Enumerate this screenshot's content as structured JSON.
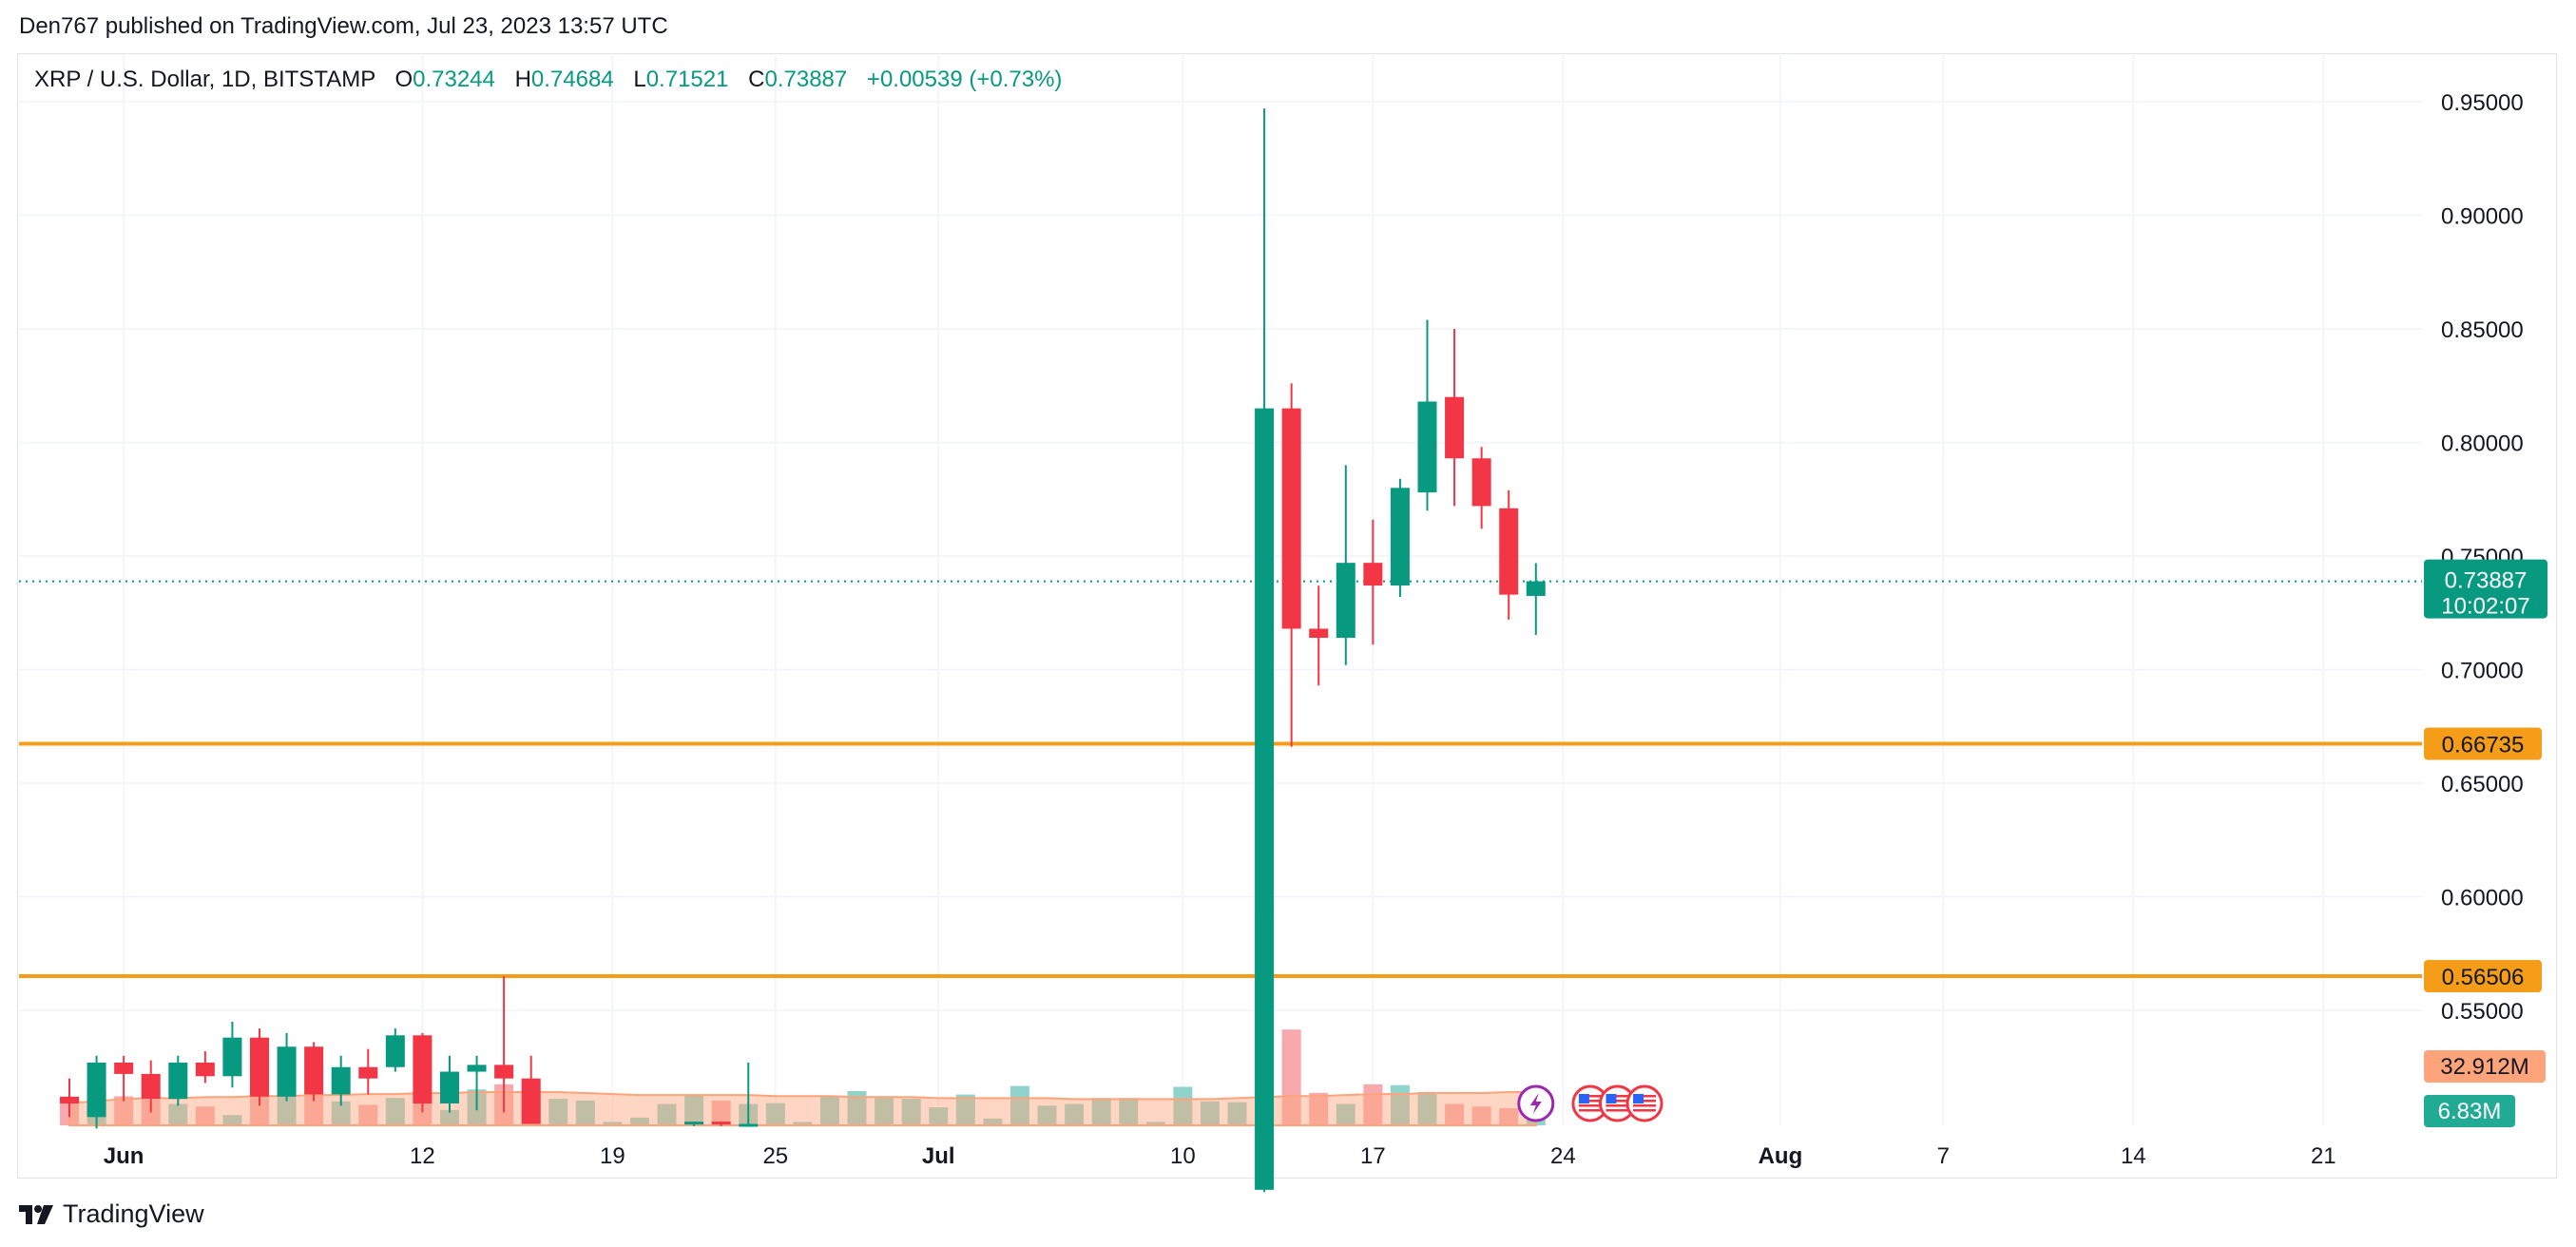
{
  "header": {
    "publisher_line": "Den767 published on TradingView.com, Jul 23, 2023 13:57 UTC"
  },
  "legend": {
    "symbol": "XRP / U.S. Dollar, 1D, BITSTAMP",
    "open_label": "O",
    "open": "0.73244",
    "high_label": "H",
    "high": "0.74684",
    "low_label": "L",
    "low": "0.71521",
    "close_label": "C",
    "close": "0.73887",
    "change": "+0.00539 (+0.73%)"
  },
  "footer": {
    "brand": "TradingView"
  },
  "colors": {
    "up": "#089981",
    "down": "#f23645",
    "vol_up": "#8fd3cb",
    "vol_down": "#f7a9ae",
    "level": "#f59d19",
    "vol_ma": "#ffa37a",
    "grid": "#f0f3fa"
  },
  "chart_data": {
    "type": "candlestick",
    "symbol": "XRP / U.S. Dollar",
    "interval": "1D",
    "exchange": "BITSTAMP",
    "ylim": [
      0.5,
      0.96
    ],
    "y_ticks": [
      "0.95000",
      "0.90000",
      "0.85000",
      "0.80000",
      "0.75000",
      "0.70000",
      "0.65000",
      "0.60000",
      "0.55000"
    ],
    "x_ticks": [
      {
        "date": "2023-06-01",
        "label": "Jun",
        "bold": true
      },
      {
        "date": "2023-06-12",
        "label": "12"
      },
      {
        "date": "2023-06-19",
        "label": "19"
      },
      {
        "date": "2023-06-25",
        "label": "25"
      },
      {
        "date": "2023-07-01",
        "label": "Jul",
        "bold": true
      },
      {
        "date": "2023-07-10",
        "label": "10"
      },
      {
        "date": "2023-07-17",
        "label": "17"
      },
      {
        "date": "2023-07-24",
        "label": "24"
      },
      {
        "date": "2023-08-01",
        "label": "Aug",
        "bold": true
      },
      {
        "date": "2023-08-07",
        "label": "7"
      },
      {
        "date": "2023-08-14",
        "label": "14"
      },
      {
        "date": "2023-08-21",
        "label": "21"
      }
    ],
    "candles": [
      {
        "date": "2023-05-30",
        "o": 0.512,
        "h": 0.52,
        "l": 0.503,
        "c": 0.509,
        "vol": 28
      },
      {
        "date": "2023-05-31",
        "o": 0.503,
        "h": 0.53,
        "l": 0.498,
        "c": 0.527,
        "vol": 40
      },
      {
        "date": "2023-06-01",
        "o": 0.527,
        "h": 0.53,
        "l": 0.51,
        "c": 0.522,
        "vol": 34
      },
      {
        "date": "2023-06-02",
        "o": 0.522,
        "h": 0.528,
        "l": 0.505,
        "c": 0.511,
        "vol": 30
      },
      {
        "date": "2023-06-03",
        "o": 0.511,
        "h": 0.53,
        "l": 0.508,
        "c": 0.527,
        "vol": 25
      },
      {
        "date": "2023-06-04",
        "o": 0.527,
        "h": 0.532,
        "l": 0.518,
        "c": 0.521,
        "vol": 22
      },
      {
        "date": "2023-06-05",
        "o": 0.521,
        "h": 0.545,
        "l": 0.516,
        "c": 0.538,
        "vol": 12
      },
      {
        "date": "2023-06-06",
        "o": 0.538,
        "h": 0.542,
        "l": 0.508,
        "c": 0.512,
        "vol": 44
      },
      {
        "date": "2023-06-07",
        "o": 0.512,
        "h": 0.54,
        "l": 0.51,
        "c": 0.534,
        "vol": 37
      },
      {
        "date": "2023-06-08",
        "o": 0.534,
        "h": 0.536,
        "l": 0.51,
        "c": 0.513,
        "vol": 40
      },
      {
        "date": "2023-06-09",
        "o": 0.513,
        "h": 0.53,
        "l": 0.508,
        "c": 0.525,
        "vol": 28
      },
      {
        "date": "2023-06-10",
        "o": 0.525,
        "h": 0.533,
        "l": 0.513,
        "c": 0.52,
        "vol": 24
      },
      {
        "date": "2023-06-11",
        "o": 0.525,
        "h": 0.542,
        "l": 0.523,
        "c": 0.539,
        "vol": 32
      },
      {
        "date": "2023-06-12",
        "o": 0.539,
        "h": 0.54,
        "l": 0.505,
        "c": 0.509,
        "vol": 36
      },
      {
        "date": "2023-06-13",
        "o": 0.509,
        "h": 0.53,
        "l": 0.505,
        "c": 0.523,
        "vol": 18
      },
      {
        "date": "2023-06-14",
        "o": 0.523,
        "h": 0.53,
        "l": 0.506,
        "c": 0.526,
        "vol": 42
      },
      {
        "date": "2023-06-15",
        "o": 0.526,
        "h": 0.565,
        "l": 0.505,
        "c": 0.52,
        "vol": 48
      },
      {
        "date": "2023-06-16",
        "o": 0.52,
        "h": 0.53,
        "l": 0.5,
        "c": 0.5,
        "vol": 46
      },
      {
        "date": "2023-06-17",
        "vol": 31
      },
      {
        "date": "2023-06-18",
        "vol": 29
      },
      {
        "date": "2023-06-19",
        "vol": 4
      },
      {
        "date": "2023-06-20",
        "vol": 9
      },
      {
        "date": "2023-06-21",
        "vol": 25
      },
      {
        "date": "2023-06-22",
        "o": 0.5,
        "h": 0.501,
        "l": 0.499,
        "c": 0.501,
        "vol": 35
      },
      {
        "date": "2023-06-23",
        "o": 0.501,
        "h": 0.501,
        "l": 0.499,
        "c": 0.5,
        "vol": 29
      },
      {
        "date": "2023-06-24",
        "o": 0.5,
        "h": 0.527,
        "l": 0.499,
        "c": 0.5,
        "vol": 25
      },
      {
        "date": "2023-06-25",
        "vol": 26
      },
      {
        "date": "2023-06-26",
        "vol": 4
      },
      {
        "date": "2023-06-27",
        "vol": 34
      },
      {
        "date": "2023-06-28",
        "vol": 40
      },
      {
        "date": "2023-06-29",
        "vol": 33
      },
      {
        "date": "2023-06-30",
        "vol": 31
      },
      {
        "date": "2023-07-01",
        "vol": 21
      },
      {
        "date": "2023-07-02",
        "vol": 36
      },
      {
        "date": "2023-07-03",
        "vol": 8
      },
      {
        "date": "2023-07-04",
        "vol": 46
      },
      {
        "date": "2023-07-05",
        "vol": 23
      },
      {
        "date": "2023-07-06",
        "vol": 25
      },
      {
        "date": "2023-07-07",
        "vol": 32
      },
      {
        "date": "2023-07-08",
        "vol": 32
      },
      {
        "date": "2023-07-09",
        "vol": 4
      },
      {
        "date": "2023-07-10",
        "vol": 45
      },
      {
        "date": "2023-07-11",
        "vol": 28
      },
      {
        "date": "2023-07-12",
        "vol": 27
      },
      {
        "date": "2023-07-13",
        "o": 0.471,
        "h": 0.947,
        "l": 0.47,
        "c": 0.815,
        "vol": 245
      },
      {
        "date": "2023-07-14",
        "o": 0.815,
        "h": 0.826,
        "l": 0.666,
        "c": 0.718,
        "vol": 112
      },
      {
        "date": "2023-07-15",
        "o": 0.718,
        "h": 0.737,
        "l": 0.693,
        "c": 0.714,
        "vol": 38
      },
      {
        "date": "2023-07-16",
        "o": 0.714,
        "h": 0.79,
        "l": 0.702,
        "c": 0.747,
        "vol": 25
      },
      {
        "date": "2023-07-17",
        "o": 0.747,
        "h": 0.766,
        "l": 0.711,
        "c": 0.737,
        "vol": 48
      },
      {
        "date": "2023-07-18",
        "o": 0.737,
        "h": 0.784,
        "l": 0.732,
        "c": 0.78,
        "vol": 47
      },
      {
        "date": "2023-07-19",
        "o": 0.778,
        "h": 0.854,
        "l": 0.77,
        "c": 0.818,
        "vol": 39
      },
      {
        "date": "2023-07-20",
        "o": 0.82,
        "h": 0.85,
        "l": 0.772,
        "c": 0.793,
        "vol": 25
      },
      {
        "date": "2023-07-21",
        "o": 0.793,
        "h": 0.798,
        "l": 0.762,
        "c": 0.772,
        "vol": 22
      },
      {
        "date": "2023-07-22",
        "o": 0.771,
        "h": 0.779,
        "l": 0.722,
        "c": 0.733,
        "vol": 20
      },
      {
        "date": "2023-07-23",
        "o": 0.73244,
        "h": 0.74684,
        "l": 0.71521,
        "c": 0.73887,
        "vol": 6.83
      }
    ],
    "vol_ma": [
      22,
      24,
      26,
      27,
      27,
      28,
      28,
      29,
      29,
      30,
      30,
      31,
      31,
      32,
      32,
      33,
      33,
      33,
      33,
      32,
      31,
      30,
      30,
      30,
      30,
      30,
      29,
      29,
      29,
      28,
      28,
      28,
      27,
      27,
      27,
      27,
      27,
      26,
      26,
      26,
      26,
      26,
      26,
      27,
      28,
      29,
      29,
      30,
      31,
      31,
      32,
      32,
      32,
      33,
      33
    ],
    "levels": [
      {
        "value": 0.66735,
        "label": "0.66735"
      },
      {
        "value": 0.56506,
        "label": "0.56506"
      }
    ],
    "last_price": {
      "value": 0.73887,
      "label": "0.73887",
      "countdown": "10:02:07"
    },
    "volume_labels": {
      "ma": "32.912M",
      "last": "6.83M"
    },
    "events": [
      {
        "date": "2023-07-23",
        "type": "crypto",
        "icon": "lightning-icon"
      },
      {
        "date": "2023-07-25",
        "type": "economic",
        "icon": "us-flag-icon"
      },
      {
        "date": "2023-07-26",
        "type": "economic",
        "icon": "us-flag-icon"
      },
      {
        "date": "2023-07-27",
        "type": "economic",
        "icon": "us-flag-icon"
      }
    ]
  }
}
